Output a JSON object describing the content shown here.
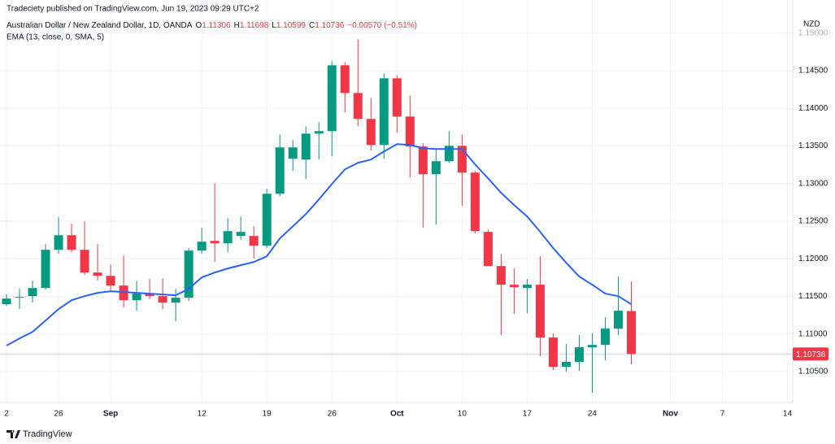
{
  "chart_data": {
    "type": "candlestick",
    "title": "Tradeciety published on TradingView.com, Jun 19, 2023 09:29 UTC+2",
    "subtitle": "Australian Dollar / New Zealand Dollar, 1D, OANDA",
    "ohlc_labels": [
      "O",
      "H",
      "L",
      "C"
    ],
    "change": "−0.00570 (−0.51%)",
    "currency": "NZD",
    "watermark": "TradingView",
    "grid": true,
    "x": [
      0,
      1,
      2,
      3,
      4,
      5,
      6,
      7,
      8,
      9,
      10,
      11,
      12,
      13,
      14,
      15,
      16,
      17,
      18,
      19,
      20,
      21,
      22,
      23,
      24,
      25,
      26,
      27,
      28,
      29,
      30,
      31,
      32,
      33,
      34,
      35,
      36,
      37,
      38,
      39,
      40,
      41,
      42,
      43,
      44,
      45,
      46,
      47,
      48
    ],
    "candles": {
      "up_color": "#089981",
      "down_color": "#f23645",
      "open": [
        1.11396,
        1.11483,
        1.11504,
        1.11612,
        1.1212,
        1.12314,
        1.1212,
        1.11818,
        1.11774,
        1.11645,
        1.1145,
        1.11537,
        1.11504,
        1.11418,
        1.11483,
        1.12109,
        1.12239,
        1.12206,
        1.12304,
        1.12304,
        1.12174,
        1.12865,
        1.1333,
        1.13319,
        1.13664,
        1.13697,
        1.14572,
        1.14204,
        1.13859,
        1.13513,
        1.14399,
        1.13891,
        1.13492,
        1.13124,
        1.13297,
        1.13502,
        1.13146,
        1.12358,
        1.11904,
        1.11656,
        1.11612,
        1.11656,
        1.10954,
        1.10565,
        1.1063,
        1.10824,
        1.10856,
        1.11072,
        1.11306
      ],
      "high": [
        1.11526,
        1.11602,
        1.1171,
        1.12196,
        1.12552,
        1.12466,
        1.12498,
        1.12196,
        1.11926,
        1.12044,
        1.1171,
        1.11731,
        1.11742,
        1.11602,
        1.12142,
        1.12412,
        1.13006,
        1.12541,
        1.12563,
        1.12433,
        1.1293,
        1.13654,
        1.13578,
        1.13762,
        1.13816,
        1.14626,
        1.14615,
        1.14917,
        1.1414,
        1.14464,
        1.14442,
        1.14172,
        1.13535,
        1.13459,
        1.13697,
        1.13654,
        1.13168,
        1.1239,
        1.12066,
        1.11872,
        1.11731,
        1.12034,
        1.11008,
        1.10867,
        1.10986,
        1.11008,
        1.11224,
        1.11764,
        1.11698
      ],
      "low": [
        1.11375,
        1.11332,
        1.11418,
        1.11591,
        1.12066,
        1.12088,
        1.11785,
        1.1171,
        1.11569,
        1.11353,
        1.1131,
        1.11461,
        1.11332,
        1.1117,
        1.1144,
        1.12066,
        1.11958,
        1.12088,
        1.1225,
        1.12001,
        1.12142,
        1.12833,
        1.13168,
        1.1306,
        1.13319,
        1.13362,
        1.13945,
        1.13762,
        1.13438,
        1.1333,
        1.13675,
        1.13081,
        1.12412,
        1.12455,
        1.13276,
        1.12703,
        1.12336,
        1.11904,
        1.10986,
        1.11267,
        1.11278,
        1.10705,
        1.10522,
        1.105,
        1.10511,
        1.10219,
        1.10651,
        1.10986,
        1.10599
      ],
      "close": [
        1.11472,
        1.11494,
        1.11612,
        1.1212,
        1.12314,
        1.1212,
        1.11818,
        1.11774,
        1.11645,
        1.1145,
        1.11537,
        1.11504,
        1.11418,
        1.11483,
        1.12109,
        1.12228,
        1.12206,
        1.12368,
        1.12358,
        1.12174,
        1.12865,
        1.13481,
        1.13481,
        1.13664,
        1.13697,
        1.14572,
        1.14204,
        1.13859,
        1.13513,
        1.14399,
        1.13891,
        1.13492,
        1.13124,
        1.13297,
        1.13502,
        1.13146,
        1.12368,
        1.11904,
        1.11656,
        1.11623,
        1.11656,
        1.10954,
        1.10565,
        1.1063,
        1.10824,
        1.10856,
        1.11072,
        1.1131,
        1.10736
      ]
    },
    "series": [
      {
        "name": "EMA (13, close, 0, SMA, 5)",
        "color": "#2962ff",
        "values": [
          1.10846,
          1.10943,
          1.11029,
          1.1118,
          1.11332,
          1.1145,
          1.11504,
          1.11548,
          1.11569,
          1.11558,
          1.11548,
          1.11537,
          1.11526,
          1.11515,
          1.11602,
          1.11753,
          1.11818,
          1.11872,
          1.11915,
          1.11958,
          1.12034,
          1.12271,
          1.12433,
          1.12595,
          1.1279,
          1.12995,
          1.13189,
          1.13276,
          1.13319,
          1.13427,
          1.13524,
          1.13513,
          1.1347,
          1.13459,
          1.13459,
          1.13459,
          1.13254,
          1.1307,
          1.12876,
          1.12714,
          1.12563,
          1.12358,
          1.12142,
          1.11947,
          1.11764,
          1.11656,
          1.11537,
          1.11504,
          1.11396
        ]
      }
    ],
    "xlim": [
      -0.5,
      60.4
    ],
    "ylim": [
      1.1009,
      1.1544
    ],
    "xticks": [
      {
        "value": 0,
        "label": "2"
      },
      {
        "value": 4,
        "label": "26"
      },
      {
        "value": 8,
        "label": "Sep"
      },
      {
        "value": 15,
        "label": "12"
      },
      {
        "value": 20,
        "label": "19"
      },
      {
        "value": 25,
        "label": "26"
      },
      {
        "value": 30,
        "label": "Oct"
      },
      {
        "value": 35,
        "label": "10"
      },
      {
        "value": 40,
        "label": "17"
      },
      {
        "value": 45,
        "label": "24"
      },
      {
        "value": 51,
        "label": "Nov"
      },
      {
        "value": 55,
        "label": "7"
      },
      {
        "value": 60,
        "label": "14"
      }
    ],
    "yticks": [
      {
        "value": 1.105,
        "label": "1.10500"
      },
      {
        "value": 1.11,
        "label": "1.11000"
      },
      {
        "value": 1.115,
        "label": "1.11500"
      },
      {
        "value": 1.12,
        "label": "1.12000"
      },
      {
        "value": 1.125,
        "label": "1.12500"
      },
      {
        "value": 1.13,
        "label": "1.13000"
      },
      {
        "value": 1.135,
        "label": "1.13500"
      },
      {
        "value": 1.14,
        "label": "1.14000"
      },
      {
        "value": 1.145,
        "label": "1.14500"
      },
      {
        "value": 1.15,
        "label": "1.15000"
      }
    ]
  }
}
